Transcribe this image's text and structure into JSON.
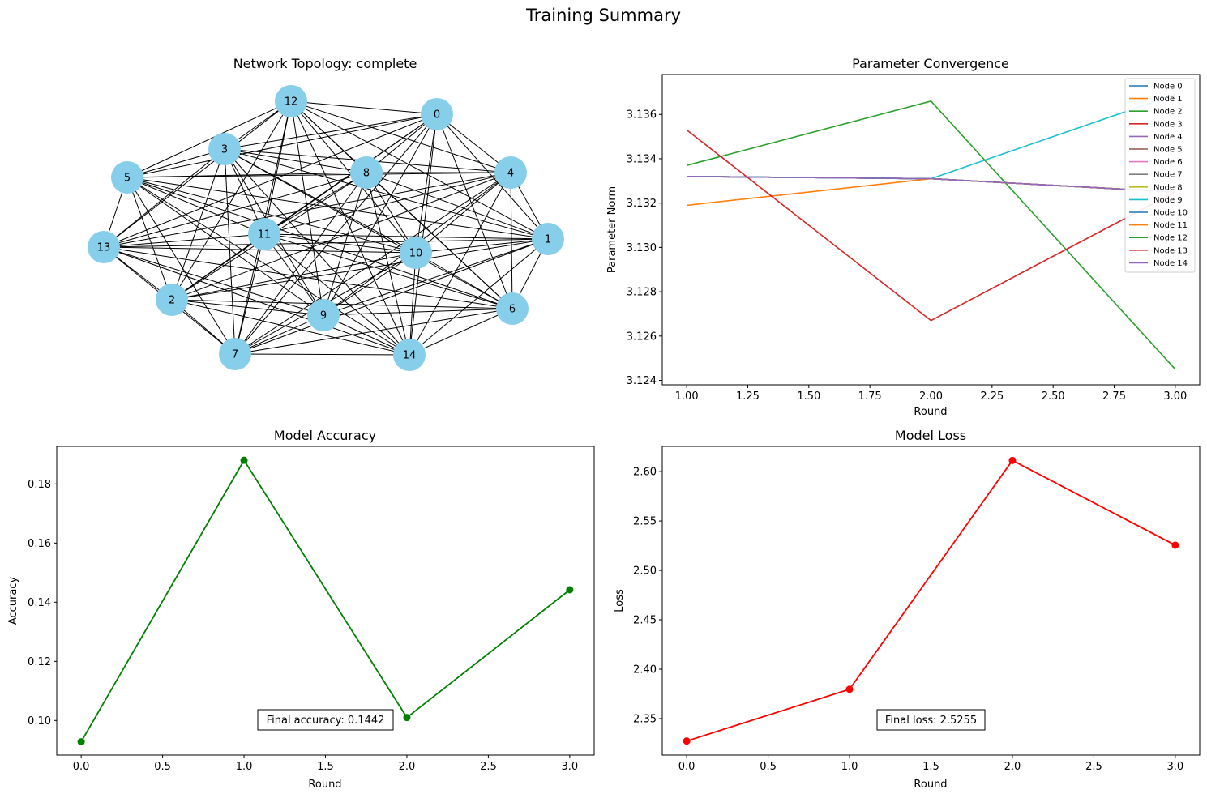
{
  "suptitle": "Training Summary",
  "colors": {
    "node_fill": "#87ceeb",
    "edge": "#000000",
    "accuracy": "#008000",
    "loss": "#ff0000",
    "palette": [
      "#1f77b4",
      "#ff7f0e",
      "#2ca02c",
      "#d62728",
      "#9467bd",
      "#8c564b",
      "#e377c2",
      "#7f7f7f",
      "#bcbd22",
      "#17becf"
    ]
  },
  "chart_data": [
    {
      "type": "network",
      "title": "Network Topology: complete",
      "topology": "complete",
      "nodes": [
        "0",
        "1",
        "2",
        "3",
        "4",
        "5",
        "6",
        "7",
        "8",
        "9",
        "10",
        "11",
        "12",
        "13",
        "14"
      ]
    },
    {
      "type": "line",
      "title": "Parameter Convergence",
      "xlabel": "Round",
      "ylabel": "Parameter Norm",
      "xlim": [
        0.9,
        3.1
      ],
      "ylim": [
        3.1238,
        3.1378
      ],
      "xticks": [
        "1.00",
        "1.25",
        "1.50",
        "1.75",
        "2.00",
        "2.25",
        "2.50",
        "2.75",
        "3.00"
      ],
      "yticks": [
        "3.124",
        "3.126",
        "3.128",
        "3.130",
        "3.132",
        "3.134",
        "3.136"
      ],
      "legend_position": "upper right",
      "x": [
        1,
        2,
        3
      ],
      "series": [
        {
          "name": "Node 0",
          "values": [
            3.1332,
            3.1331,
            3.1325
          ]
        },
        {
          "name": "Node 1",
          "values": [
            3.1332,
            3.1331,
            3.1325
          ]
        },
        {
          "name": "Node 2",
          "values": [
            3.1332,
            3.1331,
            3.1325
          ]
        },
        {
          "name": "Node 3",
          "values": [
            3.1332,
            3.1331,
            3.1325
          ]
        },
        {
          "name": "Node 4",
          "values": [
            3.1332,
            3.1331,
            3.1325
          ]
        },
        {
          "name": "Node 5",
          "values": [
            3.1332,
            3.1331,
            3.1325
          ]
        },
        {
          "name": "Node 6",
          "values": [
            3.1332,
            3.1331,
            3.1325
          ]
        },
        {
          "name": "Node 7",
          "values": [
            3.1332,
            3.1331,
            3.1325
          ]
        },
        {
          "name": "Node 8",
          "values": [
            3.1332,
            3.1331,
            3.1325
          ]
        },
        {
          "name": "Node 9",
          "values": [
            3.1332,
            3.1331,
            3.1369
          ]
        },
        {
          "name": "Node 10",
          "values": [
            3.1332,
            3.1331,
            3.1325
          ]
        },
        {
          "name": "Node 11",
          "values": [
            3.1319,
            3.1331,
            3.1325
          ]
        },
        {
          "name": "Node 12",
          "values": [
            3.1337,
            3.1366,
            3.1245
          ]
        },
        {
          "name": "Node 13",
          "values": [
            3.1353,
            3.1267,
            3.1325
          ]
        },
        {
          "name": "Node 14",
          "values": [
            3.1332,
            3.1331,
            3.1325
          ]
        }
      ]
    },
    {
      "type": "line",
      "title": "Model Accuracy",
      "xlabel": "Round",
      "ylabel": "Accuracy",
      "xlim": [
        -0.15,
        3.15
      ],
      "ylim": [
        0.0883,
        0.1927
      ],
      "xticks": [
        "0.0",
        "0.5",
        "1.0",
        "1.5",
        "2.0",
        "2.5",
        "3.0"
      ],
      "yticks": [
        "0.10",
        "0.12",
        "0.14",
        "0.16",
        "0.18"
      ],
      "x": [
        0,
        1,
        2,
        3
      ],
      "values": [
        0.0928,
        0.188,
        0.101,
        0.1442
      ],
      "annotation": "Final accuracy: 0.1442"
    },
    {
      "type": "line",
      "title": "Model Loss",
      "xlabel": "Round",
      "ylabel": "Loss",
      "xlim": [
        -0.15,
        3.15
      ],
      "ylim": [
        2.3131,
        2.6255
      ],
      "xticks": [
        "0.0",
        "0.5",
        "1.0",
        "1.5",
        "2.0",
        "2.5",
        "3.0"
      ],
      "yticks": [
        "2.35",
        "2.40",
        "2.45",
        "2.50",
        "2.55",
        "2.60"
      ],
      "x": [
        0,
        1,
        2,
        3
      ],
      "values": [
        2.3273,
        2.3797,
        2.6113,
        2.5255
      ],
      "annotation": "Final loss: 2.5255"
    }
  ]
}
